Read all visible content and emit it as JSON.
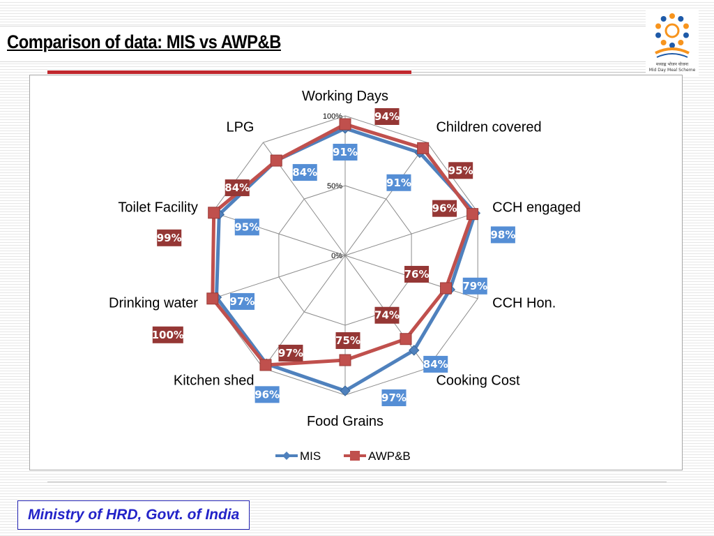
{
  "slide": {
    "title": "Comparison of data: MIS vs AWP&B",
    "footer": "Ministry of HRD, Govt. of India",
    "logo": {
      "icon": "mid-day-meal-logo",
      "caption_line1": "मध्याह्न भोजन योजना",
      "caption_line2": "Mid Day Meal Scheme"
    }
  },
  "colors": {
    "mis": "#4f81bd",
    "awpb": "#c0504d",
    "mis_label_bg": "#558ed5",
    "awpb_label_bg": "#953735",
    "title_rule": "#c0272d",
    "footer_text": "#2323c8"
  },
  "chart_data": {
    "type": "radar",
    "categories": [
      "Working Days",
      "Children covered",
      "CCH engaged",
      "CCH Hon.",
      "Cooking Cost",
      "Food Grains",
      "Kitchen shed",
      "Drinking water",
      "Toilet Facility",
      "LPG"
    ],
    "series": [
      {
        "name": "MIS",
        "values": [
          91,
          91,
          98,
          79,
          84,
          97,
          96,
          97,
          95,
          84
        ]
      },
      {
        "name": "AWP&B",
        "values": [
          94,
          95,
          96,
          76,
          74,
          75,
          97,
          100,
          99,
          84
        ]
      }
    ],
    "axis_ticks": [
      "0%",
      "50%",
      "100%"
    ],
    "rlim": [
      0,
      100
    ],
    "legend": "bottom",
    "data_label_format": "{v}%"
  }
}
